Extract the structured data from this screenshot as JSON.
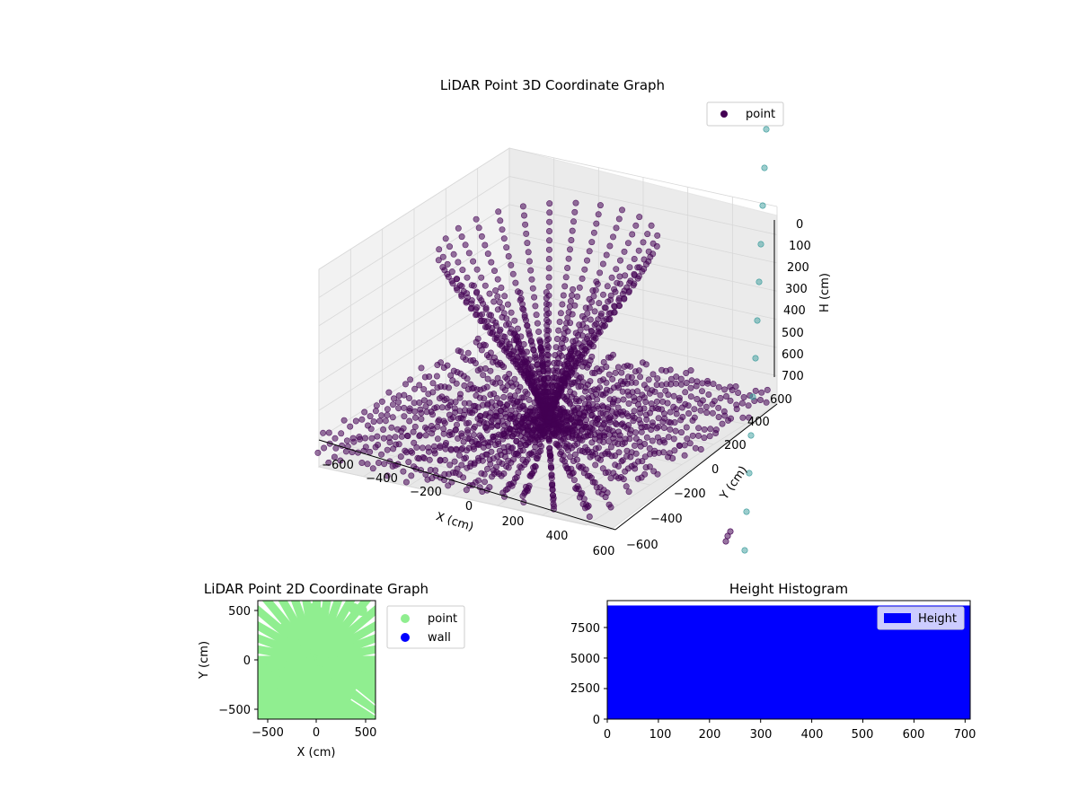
{
  "chart_data": [
    {
      "type": "scatter",
      "projection": "3d",
      "title": "LiDAR Point 3D Coordinate Graph",
      "xlabel": "X (cm)",
      "ylabel": "Y (cm)",
      "zlabel": "H (cm)",
      "xlim": [
        -600,
        600
      ],
      "ylim": [
        -600,
        600
      ],
      "zlim": [
        700,
        0
      ],
      "x_ticks": [
        "−600",
        "−400",
        "−200",
        "0",
        "200",
        "400",
        "600"
      ],
      "y_ticks": [
        "−600",
        "−400",
        "−200",
        "0",
        "200",
        "400",
        "600"
      ],
      "z_ticks": [
        "0",
        "100",
        "200",
        "300",
        "400",
        "500",
        "600",
        "700"
      ],
      "z_axis_inverted": true,
      "grid": true,
      "legend": {
        "position": "top-right",
        "entries": [
          "point"
        ]
      },
      "series": [
        {
          "name": "point",
          "color": "#440154",
          "alpha": 0.55,
          "description_of_shape": "radial rays from origin at floor, rising toward ceiling in curved arcs"
        },
        {
          "color": "#3a9c9c",
          "alpha": 0.5
        }
      ],
      "edge_column_points_3d": [
        [
          600,
          600,
          0
        ],
        [
          600,
          600,
          100
        ],
        [
          600,
          600,
          200
        ],
        [
          600,
          600,
          300
        ],
        [
          600,
          600,
          400
        ],
        [
          600,
          600,
          500
        ],
        [
          600,
          600,
          600
        ],
        [
          600,
          600,
          700
        ]
      ]
    },
    {
      "type": "scatter",
      "title": "LiDAR Point 2D Coordinate Graph",
      "xlabel": "X (cm)",
      "ylabel": "Y (cm)",
      "xlim": [
        -600,
        600
      ],
      "ylim": [
        -600,
        600
      ],
      "x_ticks": [
        "−500",
        "0",
        "500"
      ],
      "y_ticks": [
        "500",
        "0",
        "−500"
      ],
      "legend": {
        "position": "outside-right",
        "entries": [
          "point",
          "wall"
        ]
      },
      "series": [
        {
          "name": "point",
          "color": "#90ee90"
        },
        {
          "name": "wall",
          "color": "#0000ff"
        }
      ]
    },
    {
      "type": "bar",
      "title": "Height Histogram",
      "xlim": [
        0,
        710
      ],
      "ylim": [
        0,
        9700
      ],
      "x_ticks": [
        "0",
        "100",
        "200",
        "300",
        "400",
        "500",
        "600",
        "700"
      ],
      "y_ticks": [
        "0",
        "2500",
        "5000",
        "7500"
      ],
      "legend": {
        "position": "top-right",
        "entries": [
          "Height"
        ]
      },
      "series": [
        {
          "name": "Height",
          "color": "#0000ff",
          "x_range": [
            0,
            710
          ],
          "value": 9300
        }
      ]
    }
  ]
}
